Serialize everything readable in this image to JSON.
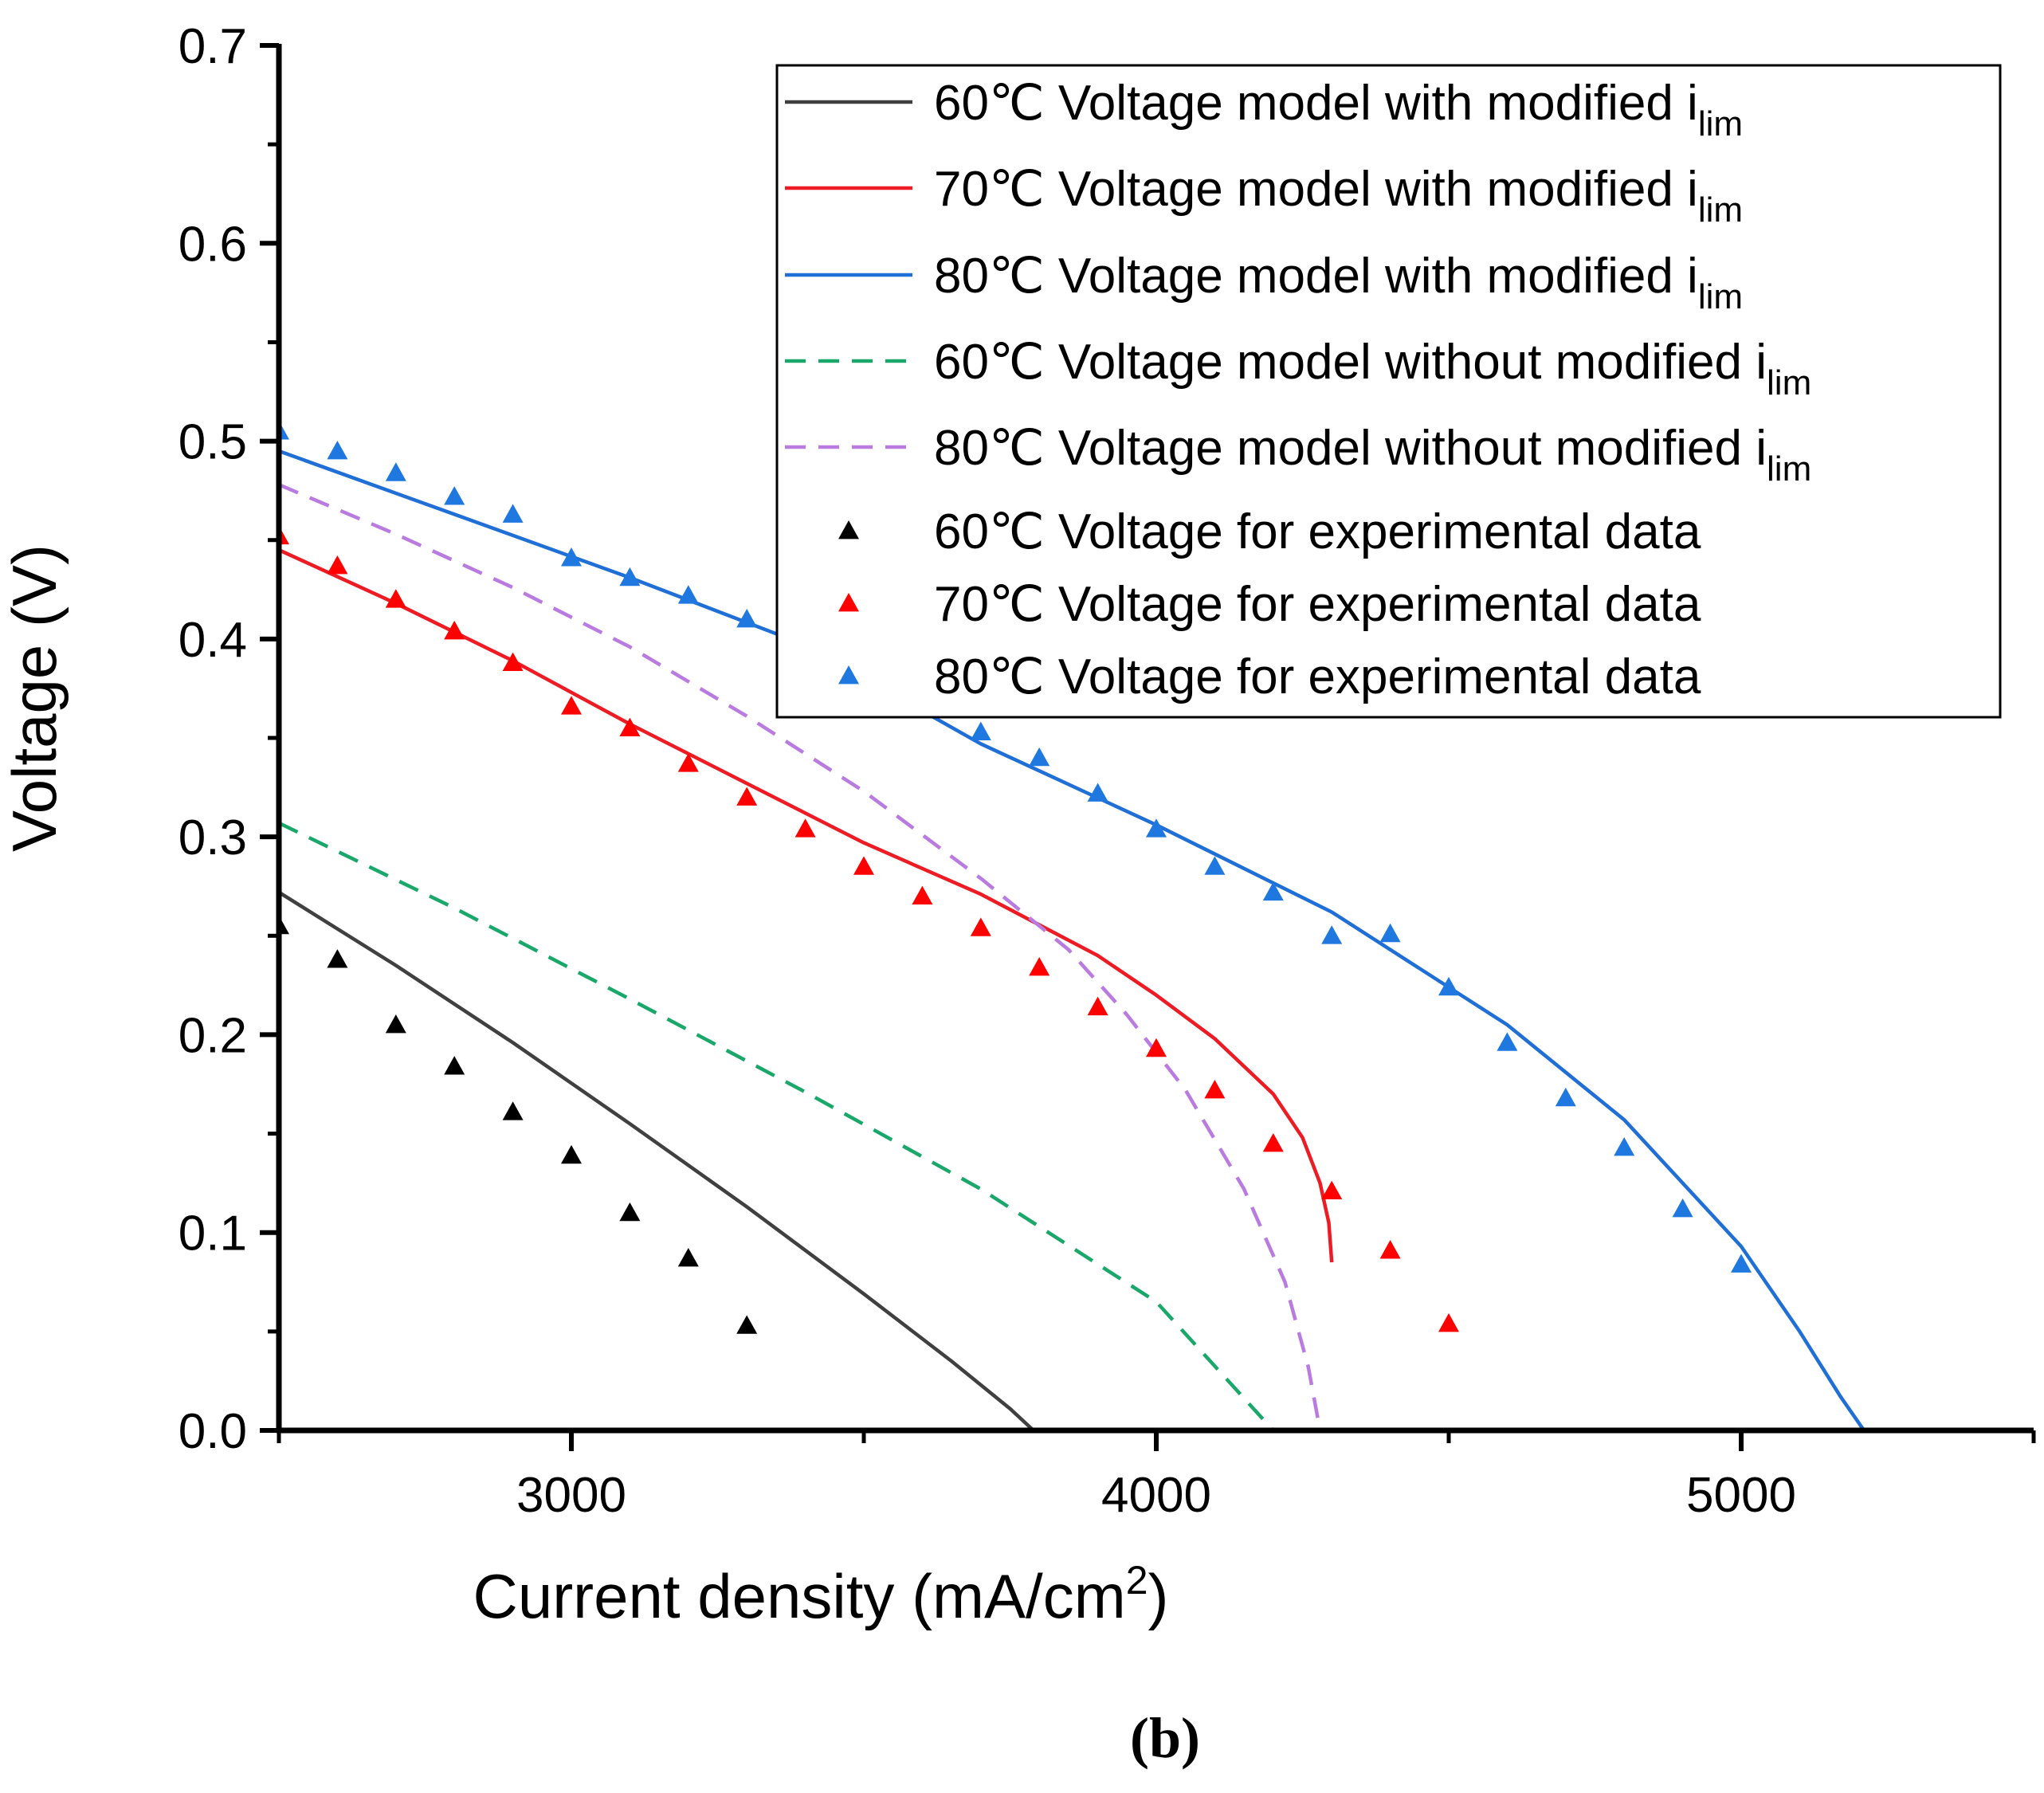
{
  "chart_data": {
    "type": "line",
    "xlabel": "Current density (mA/cm",
    "xlabel_sup": "2",
    "xlabel_suffix": ")",
    "ylabel": "Voltage (V)",
    "xlim": [
      2500,
      5500
    ],
    "ylim": [
      0.0,
      0.7
    ],
    "x_ticks": [
      3000,
      4000,
      5000
    ],
    "x_tick_labels": [
      "3000",
      "4000",
      "5000"
    ],
    "x_minor_ticks": [
      2500,
      3500,
      4500,
      5500
    ],
    "y_ticks": [
      0.0,
      0.1,
      0.2,
      0.3,
      0.4,
      0.5,
      0.6,
      0.7
    ],
    "y_tick_labels": [
      "0.0",
      "0.1",
      "0.2",
      "0.3",
      "0.4",
      "0.5",
      "0.6",
      "0.7"
    ],
    "grid": false,
    "legend_position": "top-right",
    "panel_label": "(b)",
    "series": [
      {
        "name": "60℃ Voltage model with modified i",
        "name_sub": "lim",
        "kind": "line",
        "style": "solid",
        "color": "#404040",
        "x": [
          2500,
          2700,
          2900,
          3100,
          3300,
          3500,
          3650,
          3750,
          3790
        ],
        "y": [
          0.272,
          0.235,
          0.196,
          0.155,
          0.113,
          0.069,
          0.035,
          0.011,
          0.0
        ]
      },
      {
        "name": "70℃ Voltage model with modified i",
        "name_sub": "lim",
        "kind": "line",
        "style": "solid",
        "color": "#ed1c24",
        "x": [
          2500,
          2700,
          2900,
          3100,
          3300,
          3500,
          3700,
          3900,
          4000,
          4100,
          4200,
          4250,
          4280,
          4295,
          4300
        ],
        "y": [
          0.445,
          0.418,
          0.389,
          0.357,
          0.327,
          0.297,
          0.271,
          0.24,
          0.22,
          0.198,
          0.17,
          0.148,
          0.125,
          0.105,
          0.085
        ]
      },
      {
        "name": "80℃ Voltage model with modified i",
        "name_sub": "lim",
        "kind": "line",
        "style": "solid",
        "color": "#1f6fd6",
        "x": [
          2500,
          2800,
          3100,
          3400,
          3700,
          4000,
          4300,
          4600,
          4800,
          5000,
          5100,
          5170,
          5210
        ],
        "y": [
          0.495,
          0.463,
          0.431,
          0.397,
          0.347,
          0.306,
          0.262,
          0.205,
          0.157,
          0.093,
          0.05,
          0.017,
          0.0
        ]
      },
      {
        "name": "60℃ Voltage model without modified i",
        "name_sub": "lim",
        "kind": "line",
        "style": "dashed",
        "color": "#1aa86a",
        "x": [
          2500,
          2800,
          3100,
          3400,
          3700,
          4000,
          4200
        ],
        "y": [
          0.307,
          0.264,
          0.218,
          0.171,
          0.122,
          0.065,
          0.0
        ]
      },
      {
        "name": "80℃ Voltage model without modified i",
        "name_sub": "lim",
        "kind": "line",
        "style": "dashed",
        "color": "#b97be0",
        "x": [
          2500,
          2700,
          2900,
          3100,
          3300,
          3500,
          3700,
          3850,
          3950,
          4050,
          4150,
          4220,
          4260,
          4280
        ],
        "y": [
          0.478,
          0.453,
          0.426,
          0.396,
          0.361,
          0.323,
          0.279,
          0.243,
          0.21,
          0.172,
          0.122,
          0.075,
          0.032,
          0.0
        ]
      },
      {
        "name": "60℃ Voltage for experimental data",
        "kind": "scatter",
        "marker": "triangle",
        "color": "#000000",
        "x": [
          2500,
          2600,
          2700,
          2800,
          2900,
          3000,
          3100,
          3200,
          3300
        ],
        "y": [
          0.255,
          0.238,
          0.205,
          0.184,
          0.161,
          0.139,
          0.11,
          0.087,
          0.053
        ]
      },
      {
        "name": "70℃ Voltage for experimental data",
        "kind": "scatter",
        "marker": "triangle",
        "color": "#ff0000",
        "x": [
          2500,
          2600,
          2700,
          2800,
          2900,
          3000,
          3100,
          3200,
          3300,
          3400,
          3500,
          3600,
          3700,
          3800,
          3900,
          4000,
          4100,
          4200,
          4300,
          4400,
          4500
        ],
        "y": [
          0.452,
          0.437,
          0.42,
          0.404,
          0.388,
          0.366,
          0.355,
          0.337,
          0.32,
          0.304,
          0.285,
          0.27,
          0.254,
          0.234,
          0.214,
          0.193,
          0.172,
          0.145,
          0.121,
          0.091,
          0.054
        ]
      },
      {
        "name": "80℃ Voltage for experimental data",
        "kind": "scatter",
        "marker": "triangle",
        "color": "#1f78e0",
        "x": [
          2500,
          2600,
          2700,
          2800,
          2900,
          3000,
          3100,
          3200,
          3300,
          3700,
          3800,
          3900,
          4000,
          4100,
          4200,
          4300,
          4400,
          4500,
          4600,
          4700,
          4800,
          4900,
          5000
        ],
        "y": [
          0.505,
          0.495,
          0.484,
          0.472,
          0.463,
          0.441,
          0.431,
          0.422,
          0.41,
          0.353,
          0.34,
          0.322,
          0.304,
          0.285,
          0.272,
          0.25,
          0.251,
          0.224,
          0.196,
          0.168,
          0.143,
          0.112,
          0.084
        ]
      }
    ]
  }
}
